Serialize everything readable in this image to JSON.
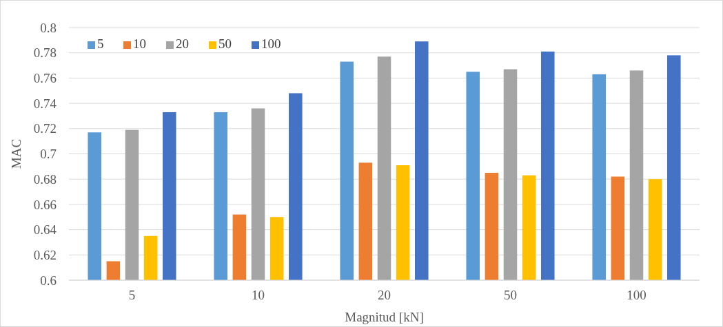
{
  "chart_data": {
    "type": "bar",
    "xlabel": "Magnitud [kN]",
    "ylabel": "MAC",
    "categories": [
      "5",
      "10",
      "20",
      "50",
      "100"
    ],
    "series": [
      {
        "name": "5",
        "color": "#5b9bd5",
        "values": [
          0.717,
          0.733,
          0.773,
          0.765,
          0.763
        ]
      },
      {
        "name": "10",
        "color": "#ed7d31",
        "values": [
          0.615,
          0.652,
          0.693,
          0.685,
          0.682
        ]
      },
      {
        "name": "20",
        "color": "#a5a5a5",
        "values": [
          0.719,
          0.736,
          0.777,
          0.767,
          0.766
        ]
      },
      {
        "name": "50",
        "color": "#ffc000",
        "values": [
          0.635,
          0.65,
          0.691,
          0.683,
          0.68
        ]
      },
      {
        "name": "100",
        "color": "#4472c4",
        "values": [
          0.733,
          0.748,
          0.789,
          0.781,
          0.778
        ]
      }
    ],
    "ylim": [
      0.6,
      0.8
    ],
    "yticks": [
      0.6,
      0.62,
      0.64,
      0.66,
      0.68,
      0.7,
      0.72,
      0.74,
      0.76,
      0.78,
      0.8
    ],
    "grid": "y",
    "legend": "top left"
  }
}
